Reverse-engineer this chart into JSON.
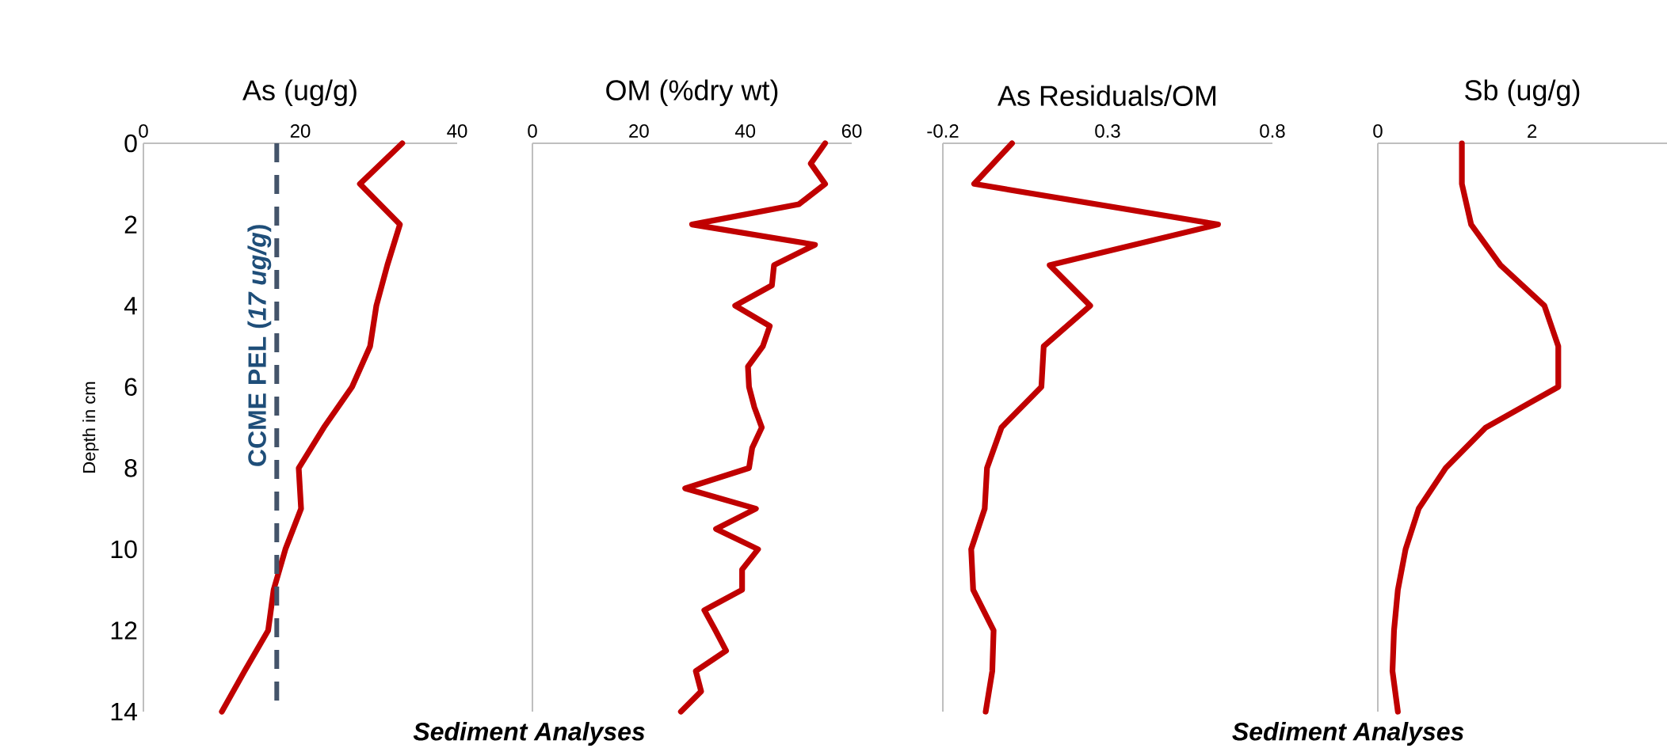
{
  "chart_data": [
    {
      "type": "line",
      "title": "As (ug/g)",
      "ylabel": "Depth in cm",
      "xlim": [
        0,
        40
      ],
      "xticks": [
        0,
        20,
        40
      ],
      "ylim": [
        14,
        0
      ],
      "yticks": [
        0,
        2,
        4,
        6,
        8,
        10,
        12,
        14
      ],
      "series": [
        {
          "color": "#c00000",
          "x": [
            33,
            27.6,
            32.7,
            31.1,
            29.7,
            28.9,
            26.6,
            23,
            19.8,
            20.1,
            18.1,
            16.6,
            15.9,
            12.9,
            10
          ],
          "values": [
            0,
            1,
            2,
            3,
            4,
            5,
            6,
            7,
            8,
            9,
            10,
            11,
            12,
            13,
            14
          ]
        }
      ],
      "ref_lines": [
        {
          "axis": "x",
          "value": 17,
          "label": "CCME PEL (*17 ug/g*)",
          "color": "#44546a",
          "line_style": "dashed"
        }
      ],
      "annotations": [
        "Sediment Analyses"
      ]
    },
    {
      "type": "line",
      "title": "OM (%dry wt)",
      "xlim": [
        0,
        60
      ],
      "xticks": [
        0,
        20,
        40,
        60
      ],
      "ylim": [
        14,
        0
      ],
      "tick_labels": "x",
      "series": [
        {
          "color": "#c00000",
          "x": [
            55,
            52.3,
            55,
            50.1,
            30,
            53.1,
            45.4,
            45,
            38.1,
            44.6,
            43.3,
            40.5,
            40.7,
            41.7,
            43.1,
            41.3,
            40.7,
            28.7,
            42,
            34.5,
            42.4,
            39.4,
            39.4,
            32.3,
            34.4,
            36.4,
            30.7,
            31.7,
            27.9
          ],
          "values": [
            0,
            0.5,
            1,
            1.5,
            2,
            2.5,
            3,
            3.5,
            4,
            4.5,
            5,
            5.5,
            6,
            6.5,
            7,
            7.5,
            8,
            8.5,
            9,
            9.5,
            10,
            10.5,
            11,
            11.5,
            12,
            12.5,
            13,
            13.5,
            14
          ]
        }
      ]
    },
    {
      "type": "line",
      "title": "As Residuals/OM",
      "xlim": [
        -0.2,
        0.8
      ],
      "xticks": [
        -0.2,
        0.3,
        0.8
      ],
      "ylim": [
        14,
        0
      ],
      "tick_labels": "x",
      "series": [
        {
          "color": "#c00000",
          "x": [
            0.01,
            -0.105,
            0.635,
            0.124,
            0.247,
            0.106,
            0.099,
            -0.022,
            -0.066,
            -0.073,
            -0.114,
            -0.108,
            -0.046,
            -0.05,
            -0.07
          ],
          "values": [
            0,
            1,
            2,
            3,
            4,
            5,
            6,
            7,
            8,
            9,
            10,
            11,
            12,
            13,
            14
          ]
        }
      ],
      "annotations": [
        "Sediment Analyses"
      ]
    },
    {
      "type": "line",
      "title": "Sb (ug/g)",
      "xlim": [
        0,
        3.75
      ],
      "xticks": [
        0,
        2
      ],
      "ylim": [
        14,
        0
      ],
      "tick_labels": "x",
      "series": [
        {
          "color": "#c00000",
          "x": [
            1.09,
            1.09,
            1.21,
            1.59,
            2.16,
            2.34,
            2.34,
            1.4,
            0.88,
            0.53,
            0.36,
            0.26,
            0.21,
            0.19,
            0.26
          ],
          "values": [
            0,
            1,
            2,
            3,
            4,
            5,
            6,
            7,
            8,
            9,
            10,
            11,
            12,
            13,
            14
          ]
        }
      ]
    }
  ]
}
